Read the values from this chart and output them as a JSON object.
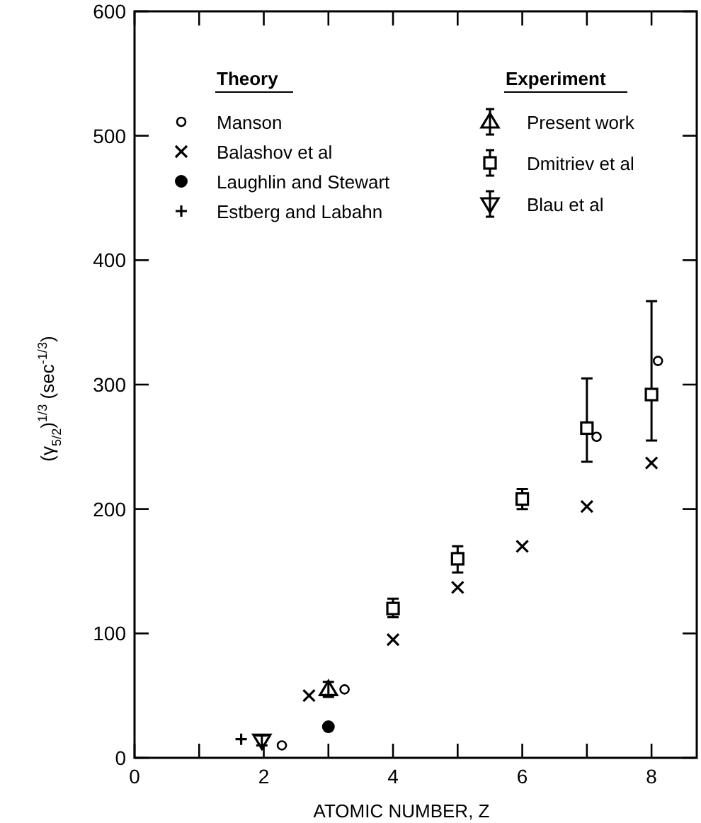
{
  "chart_data": {
    "type": "scatter",
    "xlabel": "ATOMIC NUMBER, Z",
    "ylabel": "(γ$_{5/2}$)$^{1/3}$ (sec$^{-1/3}$)",
    "xlim": [
      0,
      8.7
    ],
    "ylim": [
      0,
      600
    ],
    "xticks": [
      0,
      {
        "value": 1,
        "label": null
      },
      2,
      {
        "value": 3,
        "label": null
      },
      4,
      {
        "value": 5,
        "label": null
      },
      6,
      {
        "value": 7,
        "label": null
      },
      8
    ],
    "yticks": [
      0,
      100,
      200,
      300,
      400,
      500,
      600
    ],
    "grid": false,
    "legend": "top",
    "legend_title": [
      "Theory",
      "Experiment"
    ],
    "series": [
      {
        "name": "Manson",
        "color": "#000000",
        "x": [
          2.28,
          3.25,
          7.15,
          8.1
        ],
        "values": [
          10,
          55,
          258,
          319
        ]
      },
      {
        "name": "Balashov et al",
        "color": "#000000",
        "x": [
          2.7,
          4,
          5,
          6,
          7,
          8
        ],
        "values": [
          50,
          95,
          137,
          170,
          202,
          237
        ]
      },
      {
        "name": "Laughlin and Stewart",
        "color": "#000000",
        "x": [
          3
        ],
        "values": [
          25
        ]
      },
      {
        "name": "Estberg and Labahn",
        "color": "#000000",
        "x": [
          1.65
        ],
        "values": [
          15
        ]
      },
      {
        "name": "Present work",
        "color": "#000000",
        "x": [
          3
        ],
        "values": [
          55
        ],
        "errors": [
          [
            49,
            61
          ]
        ]
      },
      {
        "name": "Dmitriev et al",
        "color": "#000000",
        "x": [
          4,
          5,
          6,
          7,
          8
        ],
        "values": [
          120,
          160,
          208,
          265,
          292
        ],
        "errors": [
          [
            113,
            128
          ],
          [
            149,
            170
          ],
          [
            200,
            216
          ],
          [
            238,
            305
          ],
          [
            255,
            367
          ]
        ]
      },
      {
        "name": "Blau et al",
        "color": "#000000",
        "x": [
          1.97
        ],
        "values": [
          14
        ],
        "errors": [
          [
            10,
            18
          ]
        ]
      }
    ]
  }
}
